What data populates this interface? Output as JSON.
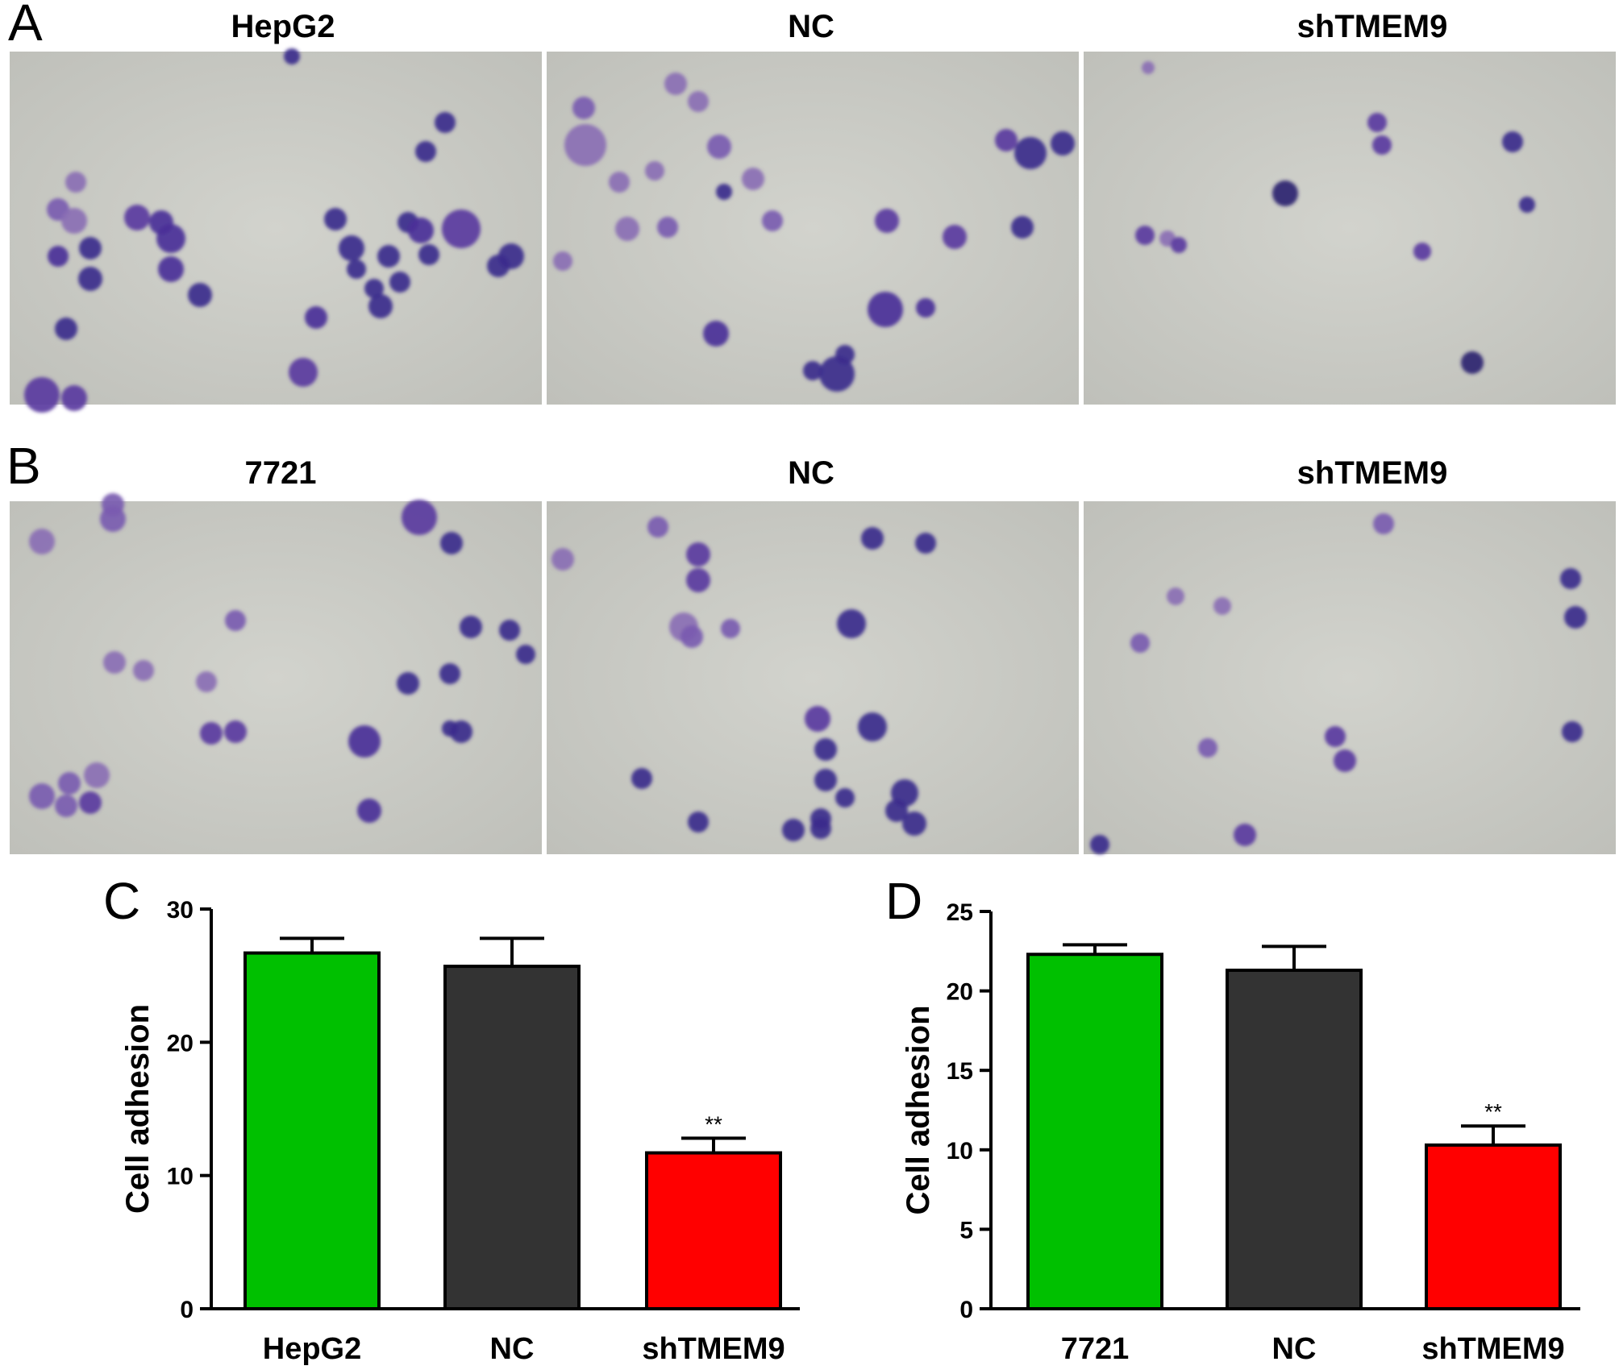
{
  "micrographs": [
    {
      "letter": "A",
      "titles": [
        "HepG2",
        "NC",
        "shTMEM9"
      ]
    },
    {
      "letter": "B",
      "titles": [
        "7721",
        "NC",
        "shTMEM9"
      ]
    }
  ],
  "colors": {
    "micrograph_background": "#c9cac4",
    "cell_stain": "#3b2a8c",
    "bar_control": "#00c000",
    "bar_nc": "#333333",
    "bar_shTMEM9": "#ff0000"
  },
  "chart_data": [
    {
      "type": "bar",
      "panel": "C",
      "categories": [
        "HepG2",
        "NC",
        "shTMEM9"
      ],
      "values": [
        26.7,
        25.7,
        11.7
      ],
      "errors": [
        1.1,
        2.1,
        1.1
      ],
      "annotations": [
        "",
        "",
        "**"
      ],
      "ylabel": "Cell adhesion",
      "ylim": [
        0,
        30
      ],
      "yticks": [
        0,
        10,
        20,
        30
      ],
      "grid": false
    },
    {
      "type": "bar",
      "panel": "D",
      "categories": [
        "7721",
        "NC",
        "shTMEM9"
      ],
      "values": [
        22.3,
        21.3,
        10.3
      ],
      "errors": [
        0.6,
        1.5,
        1.2
      ],
      "annotations": [
        "",
        "",
        "**"
      ],
      "ylabel": "Cell adhesion",
      "ylim": [
        0,
        25
      ],
      "yticks": [
        0,
        5,
        10,
        15,
        20,
        25
      ],
      "grid": false
    }
  ]
}
